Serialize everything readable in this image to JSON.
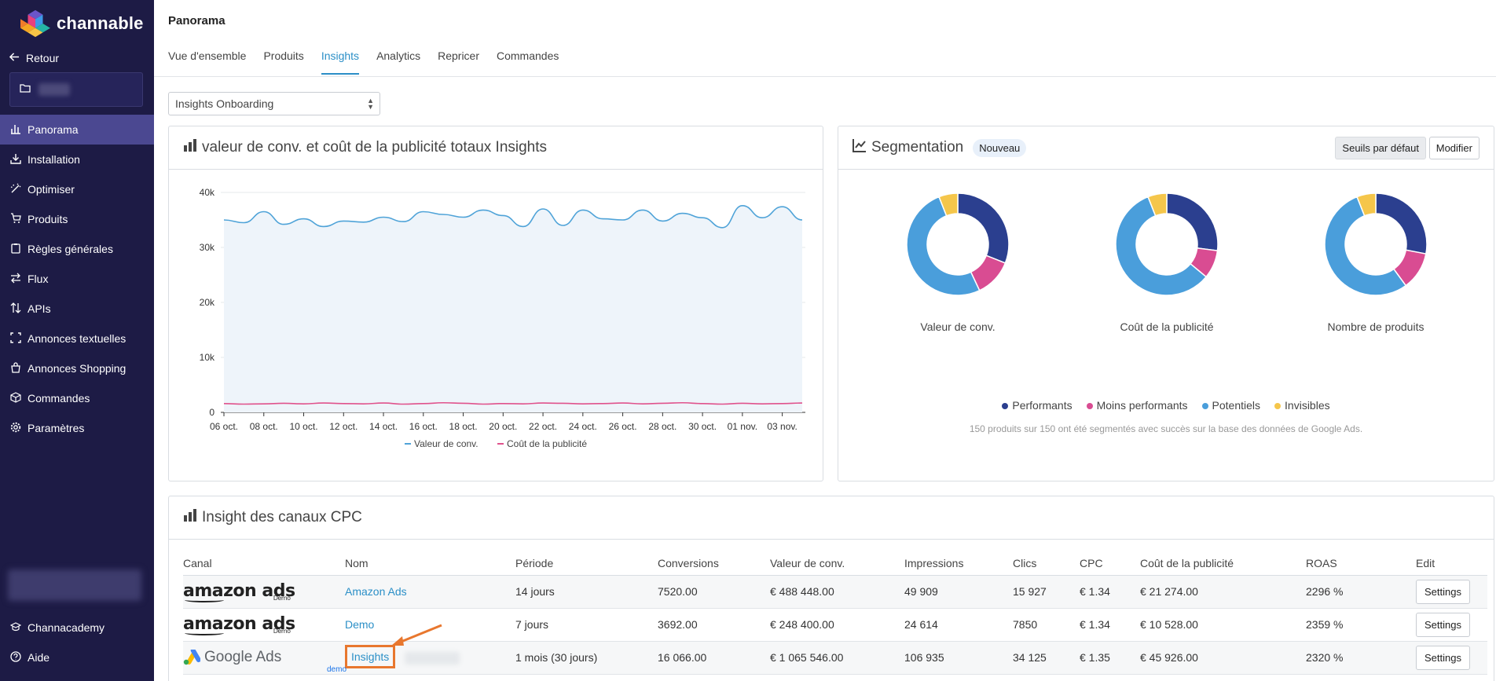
{
  "brand": {
    "name": "channable"
  },
  "sidebar": {
    "back_label": "Retour",
    "items": [
      {
        "label": "Panorama",
        "icon": "chart-bar-icon",
        "active": true
      },
      {
        "label": "Installation",
        "icon": "download-icon"
      },
      {
        "label": "Optimiser",
        "icon": "magic-wand-icon"
      },
      {
        "label": "Produits",
        "icon": "cart-icon"
      },
      {
        "label": "Règles générales",
        "icon": "clipboard-icon"
      },
      {
        "label": "Flux",
        "icon": "exchange-icon"
      },
      {
        "label": "APIs",
        "icon": "sort-icon"
      },
      {
        "label": "Annonces textuelles",
        "icon": "expand-icon"
      },
      {
        "label": "Annonces Shopping",
        "icon": "shopping-bag-icon"
      },
      {
        "label": "Commandes",
        "icon": "box-icon"
      },
      {
        "label": "Paramètres",
        "icon": "gear-icon"
      }
    ],
    "bottom_items": [
      {
        "label": "Channacademy",
        "icon": "graduation-cap-icon"
      },
      {
        "label": "Aide",
        "icon": "question-icon"
      }
    ]
  },
  "header": {
    "title": "Panorama",
    "tabs": [
      "Vue d'ensemble",
      "Produits",
      "Insights",
      "Analytics",
      "Repricer",
      "Commandes"
    ],
    "active_tab": "Insights"
  },
  "dropdown": {
    "value": "Insights Onboarding"
  },
  "chart_card": {
    "title": "valeur de conv. et coût de la publicité totaux Insights"
  },
  "chart_data": {
    "type": "line",
    "title": "valeur de conv. et coût de la publicité totaux Insights",
    "x_ticks": [
      "06 oct.",
      "08 oct.",
      "10 oct.",
      "12 oct.",
      "14 oct.",
      "16 oct.",
      "18 oct.",
      "20 oct.",
      "22 oct.",
      "24 oct.",
      "26 oct.",
      "28 oct.",
      "30 oct.",
      "01 nov.",
      "03 nov."
    ],
    "y_ticks": [
      "0",
      "10k",
      "20k",
      "30k",
      "40k"
    ],
    "ylim": [
      0,
      40000
    ],
    "grid": true,
    "legend_position": "bottom",
    "series": [
      {
        "name": "Valeur de conv.",
        "color": "#4fa3d8",
        "area": true,
        "values": [
          35000,
          34500,
          36500,
          34200,
          35200,
          33800,
          34800,
          34600,
          35500,
          34700,
          36500,
          36000,
          35500,
          36800,
          35800,
          33800,
          37000,
          34000,
          36800,
          35200,
          35000,
          36800,
          34800,
          36200,
          35400,
          33600,
          37600,
          35400,
          37400,
          35000
        ]
      },
      {
        "name": "Coût de la publicité",
        "color": "#e0528c",
        "area": false,
        "values": [
          1600,
          1500,
          1550,
          1650,
          1550,
          1700,
          1600,
          1550,
          1700,
          1500,
          1600,
          1750,
          1650,
          1500,
          1600,
          1550,
          1700,
          1650,
          1550,
          1600,
          1700,
          1550,
          1650,
          1750,
          1600,
          1500,
          1650,
          1550,
          1600,
          1700
        ]
      }
    ]
  },
  "segmentation": {
    "title": "Segmentation",
    "badge": "Nouveau",
    "btn_default": "Seuils par défaut",
    "btn_edit": "Modifier",
    "legend": [
      {
        "label": "Performants",
        "color": "#2b3f8f"
      },
      {
        "label": "Moins performants",
        "color": "#d94c92"
      },
      {
        "label": "Potentiels",
        "color": "#4a9edb"
      },
      {
        "label": "Invisibles",
        "color": "#f5c64b"
      }
    ],
    "donuts": [
      {
        "label": "Valeur de conv.",
        "values": [
          0.31,
          0.12,
          0.51,
          0.06
        ]
      },
      {
        "label": "Coût de la publicité",
        "values": [
          0.27,
          0.09,
          0.58,
          0.06
        ]
      },
      {
        "label": "Nombre de produits",
        "values": [
          0.28,
          0.12,
          0.54,
          0.06
        ]
      }
    ],
    "note": "150 produits sur 150 ont été segmentés avec succès sur la base des données de Google Ads."
  },
  "cpc": {
    "title": "Insight des canaux CPC",
    "columns": [
      "Canal",
      "Nom",
      "Période",
      "Conversions",
      "Valeur de conv.",
      "Impressions",
      "Clics",
      "CPC",
      "Coût de la publicité",
      "ROAS",
      "Edit"
    ],
    "rows": [
      {
        "canal": "amazon ads",
        "canal_sub": "Demo",
        "nom": "Amazon Ads",
        "periode": "14 jours",
        "conversions": "7520.00",
        "valeur": "€ 488 448.00",
        "impressions": "49 909",
        "clics": "15 927",
        "cpc": "€ 1.34",
        "cout": "€ 21 274.00",
        "roas": "2296 %",
        "edit": "Settings"
      },
      {
        "canal": "amazon ads",
        "canal_sub": "Demo",
        "nom": "Demo",
        "periode": "7 jours",
        "conversions": "3692.00",
        "valeur": "€ 248 400.00",
        "impressions": "24 614",
        "clics": "7850",
        "cpc": "€ 1.34",
        "cout": "€ 10 528.00",
        "roas": "2359 %",
        "edit": "Settings"
      },
      {
        "canal": "Google Ads",
        "canal_sub": "demo",
        "nom": "Insights",
        "periode": "1 mois (30 jours)",
        "conversions": "16 066.00",
        "valeur": "€ 1 065 546.00",
        "impressions": "106 935",
        "clics": "34 125",
        "cpc": "€ 1.35",
        "cout": "€ 45 926.00",
        "roas": "2320 %",
        "edit": "Settings"
      }
    ]
  }
}
